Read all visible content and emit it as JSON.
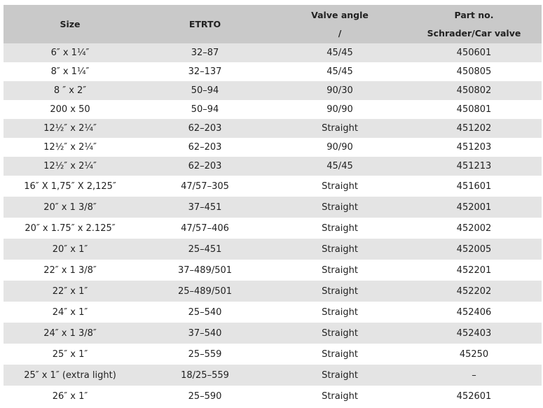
{
  "table": {
    "header": [
      [
        "Size"
      ],
      [
        "ETRTO"
      ],
      [
        "Valve angle",
        "/"
      ],
      [
        "Part no.",
        "Schrader/Car valve"
      ]
    ],
    "rows": [
      [
        "6″ x 1¼″",
        "32–87",
        "45/45",
        "450601"
      ],
      [
        "8″ x 1¼″",
        "32–137",
        "45/45",
        "450805"
      ],
      [
        "8 ″ x  2″",
        "50–94",
        "90/30",
        "450802"
      ],
      [
        "200 x 50",
        "50–94",
        "90/90",
        "450801"
      ],
      [
        "12½″ x 2¼″",
        "62–203",
        "Straight",
        "451202"
      ],
      [
        "12½″ x 2¼″",
        "62–203",
        "90/90",
        "451203"
      ],
      [
        "12½″ x 2¼″",
        "62–203",
        "45/45",
        "451213"
      ],
      [
        "16″ X 1,75″ X 2,125″",
        "47/57–305",
        "Straight",
        "451601"
      ],
      [
        "20″ x 1 3/8″",
        "37–451",
        "Straight",
        "452001"
      ],
      [
        "20″ x 1.75″ x 2.125″",
        "47/57–406",
        "Straight",
        "452002"
      ],
      [
        "20″ x 1″",
        "25–451",
        "Straight",
        "452005"
      ],
      [
        "22″ x 1 3/8″",
        "37–489/501",
        "Straight",
        "452201"
      ],
      [
        "22″ x 1″",
        "25–489/501",
        "Straight",
        "452202"
      ],
      [
        "24″ x 1″",
        "25–540",
        "Straight",
        "452406"
      ],
      [
        "24″ x 1 3/8″",
        "37–540",
        "Straight",
        "452403"
      ],
      [
        "25″ x 1″",
        "25–559",
        "Straight",
        "45250"
      ],
      [
        "25″ x 1″ (extra light)",
        "18/25–559",
        "Straight",
        "–"
      ],
      [
        "26″ x 1″",
        "25–590",
        "Straight",
        "452601"
      ]
    ]
  }
}
